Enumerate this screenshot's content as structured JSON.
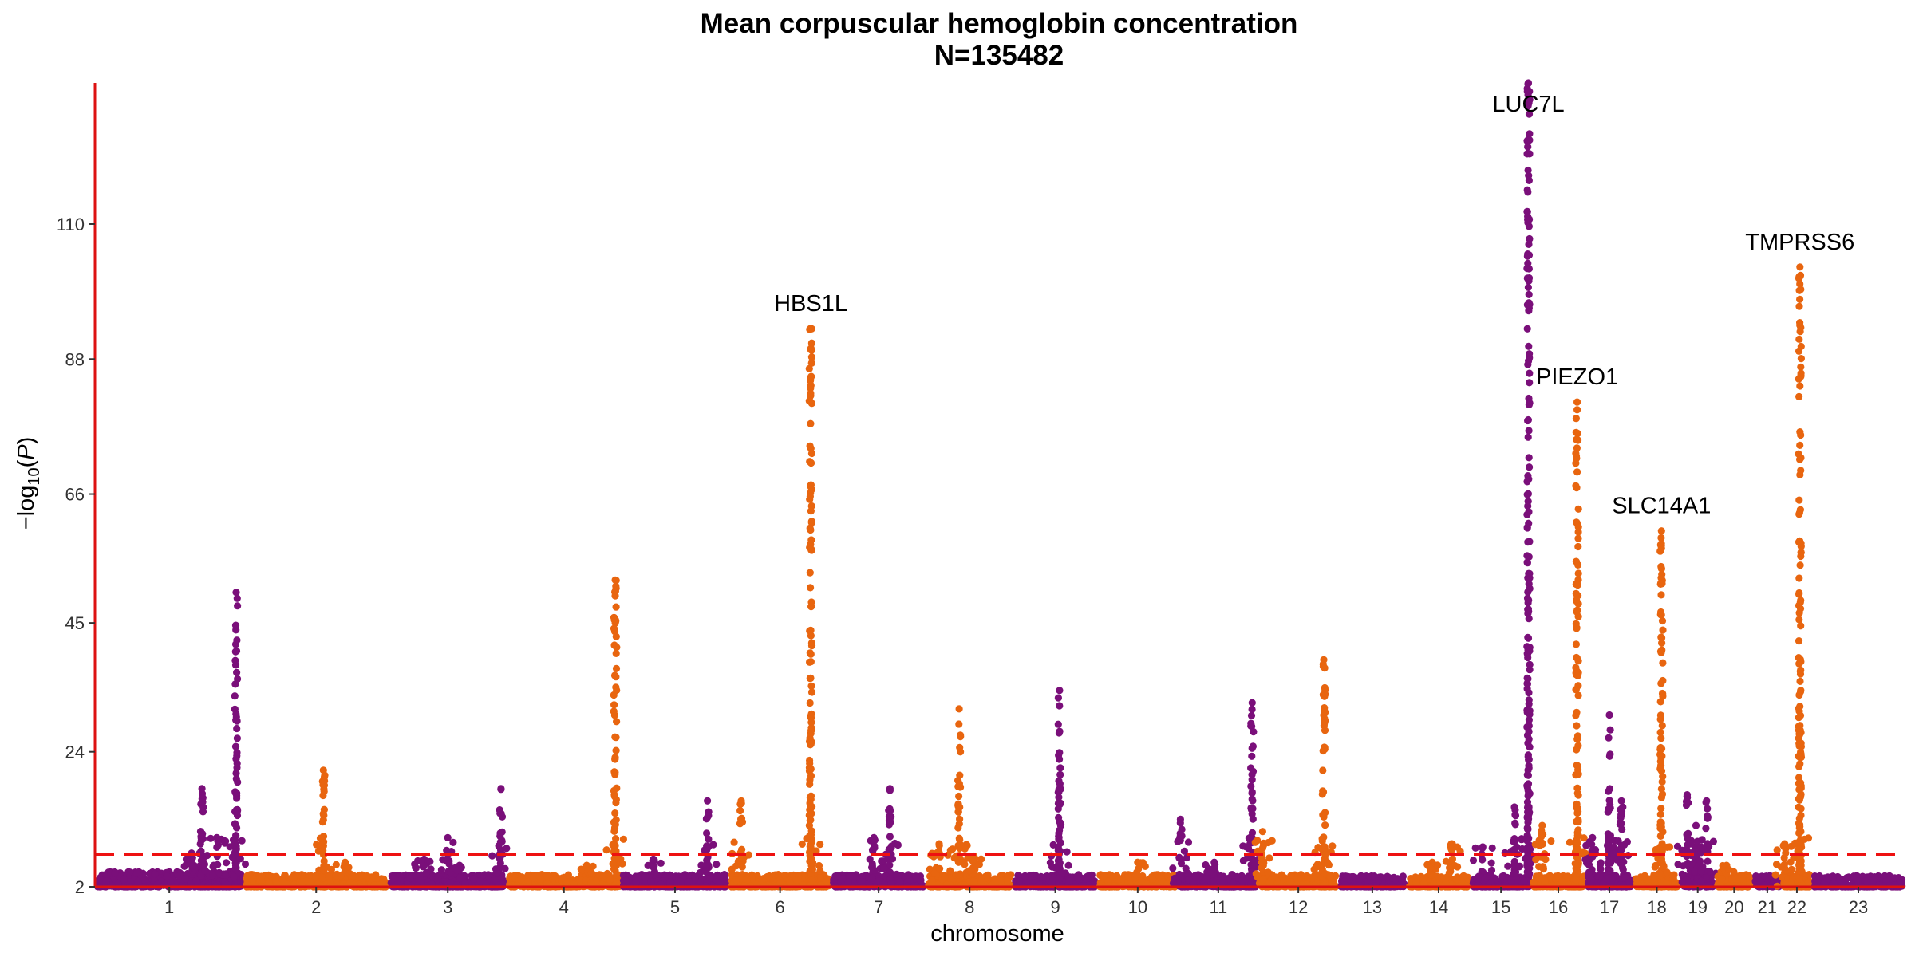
{
  "chart_data": {
    "type": "scatter",
    "subtype": "manhattan",
    "title": "Mean corpuscular hemoglobin concentration",
    "subtitle": "N=135482",
    "xlabel": "chromosome",
    "ylabel_parts": {
      "pre": "−log",
      "sub": "10",
      "mid": "(",
      "italic": "P",
      "post": ")"
    },
    "ylim": [
      2,
      133
    ],
    "yticks": [
      2,
      24,
      45,
      66,
      88,
      110
    ],
    "threshold": 7.3,
    "colors": {
      "odd": "#7a0f7a",
      "even": "#e8650f",
      "axis": "#dd1111",
      "threshold": "#ee1111"
    },
    "chromosomes": [
      {
        "label": "1",
        "size": 249,
        "baseline": 3.5,
        "peaks": [
          [
            0.65,
            7.5
          ],
          [
            0.72,
            18
          ],
          [
            0.82,
            10
          ],
          [
            0.95,
            50
          ]
        ]
      },
      {
        "label": "2",
        "size": 243,
        "baseline": 3.0,
        "peaks": [
          [
            0.55,
            21
          ],
          [
            0.7,
            6
          ]
        ]
      },
      {
        "label": "3",
        "size": 198,
        "baseline": 3.0,
        "peaks": [
          [
            0.3,
            6.5
          ],
          [
            0.5,
            10
          ],
          [
            0.6,
            5.5
          ],
          [
            0.95,
            18
          ]
        ]
      },
      {
        "label": "4",
        "size": 191,
        "baseline": 3.0,
        "peaks": [
          [
            0.7,
            5.5
          ],
          [
            0.95,
            52
          ]
        ]
      },
      {
        "label": "5",
        "size": 181,
        "baseline": 3.0,
        "peaks": [
          [
            0.3,
            6.5
          ],
          [
            0.8,
            16
          ]
        ]
      },
      {
        "label": "6",
        "size": 171,
        "baseline": 3.0,
        "peaks": [
          [
            0.12,
            16
          ],
          [
            0.8,
            93
          ]
        ]
      },
      {
        "label": "7",
        "size": 159,
        "baseline": 3.0,
        "peaks": [
          [
            0.45,
            10
          ],
          [
            0.62,
            18
          ]
        ]
      },
      {
        "label": "8",
        "size": 146,
        "baseline": 3.0,
        "peaks": [
          [
            0.15,
            9
          ],
          [
            0.38,
            31
          ],
          [
            0.55,
            7
          ]
        ]
      },
      {
        "label": "9",
        "size": 141,
        "baseline": 3.0,
        "peaks": [
          [
            0.55,
            34
          ]
        ]
      },
      {
        "label": "10",
        "size": 135,
        "baseline": 3.0,
        "peaks": [
          [
            0.5,
            6
          ]
        ]
      },
      {
        "label": "11",
        "size": 135,
        "baseline": 3.0,
        "peaks": [
          [
            0.03,
            13
          ],
          [
            0.45,
            6
          ],
          [
            0.92,
            32
          ]
        ]
      },
      {
        "label": "12",
        "size": 133,
        "baseline": 3.0,
        "peaks": [
          [
            0.05,
            11
          ],
          [
            0.82,
            39
          ]
        ]
      },
      {
        "label": "13",
        "size": 115,
        "baseline": 2.8,
        "peaks": []
      },
      {
        "label": "14",
        "size": 107,
        "baseline": 2.8,
        "peaks": [
          [
            0.4,
            6
          ],
          [
            0.7,
            9
          ]
        ]
      },
      {
        "label": "15",
        "size": 102,
        "baseline": 2.8,
        "peaks": [
          [
            0.2,
            8.5
          ],
          [
            0.72,
            15
          ],
          [
            0.95,
            133
          ]
        ]
      },
      {
        "label": "16",
        "size": 90,
        "baseline": 3.0,
        "peaks": [
          [
            0.2,
            12
          ],
          [
            0.85,
            81
          ]
        ]
      },
      {
        "label": "17",
        "size": 81,
        "baseline": 3.0,
        "peaks": [
          [
            0.15,
            10
          ],
          [
            0.5,
            30
          ],
          [
            0.75,
            16
          ]
        ]
      },
      {
        "label": "18",
        "size": 78,
        "baseline": 3.0,
        "peaks": [
          [
            0.6,
            60
          ]
        ]
      },
      {
        "label": "19",
        "size": 59,
        "baseline": 3.0,
        "peaks": [
          [
            0.2,
            17
          ],
          [
            0.45,
            12
          ],
          [
            0.75,
            16
          ]
        ]
      },
      {
        "label": "20",
        "size": 63,
        "baseline": 3.0,
        "peaks": [
          [
            0.3,
            5.5
          ]
        ]
      },
      {
        "label": "21",
        "size": 48,
        "baseline": 2.8,
        "peaks": []
      },
      {
        "label": "22",
        "size": 51,
        "baseline": 3.0,
        "peaks": [
          [
            0.1,
            9
          ],
          [
            0.6,
            103
          ]
        ]
      },
      {
        "label": "23",
        "size": 155,
        "baseline": 2.8,
        "peaks": []
      }
    ],
    "annotations": [
      {
        "text": "HBS1L",
        "chrom": 6,
        "pos": 0.8,
        "y": 93
      },
      {
        "text": "LUC7L",
        "chrom": 15,
        "pos": 0.95,
        "y": 133
      },
      {
        "text": "PIEZO1",
        "chrom": 16,
        "pos": 0.85,
        "y": 81
      },
      {
        "text": "SLC14A1",
        "chrom": 18,
        "pos": 0.6,
        "y": 60
      },
      {
        "text": "TMPRSS6",
        "chrom": 22,
        "pos": 0.6,
        "y": 103
      }
    ]
  }
}
